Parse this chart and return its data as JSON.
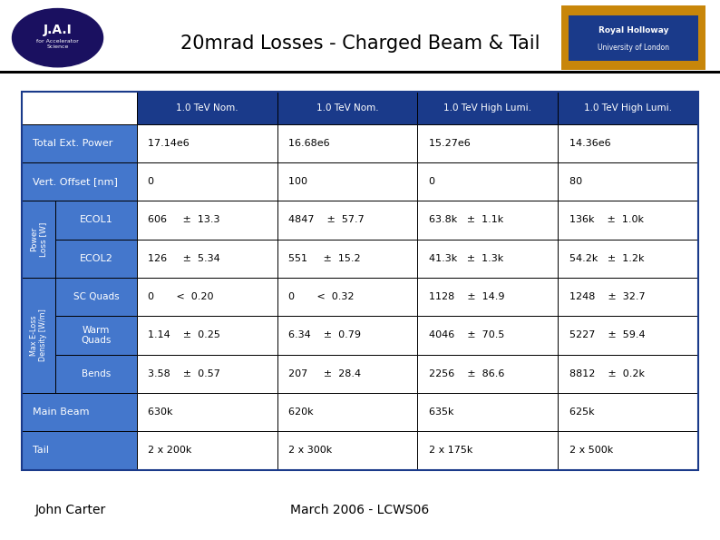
{
  "title": "20mrad Losses - Charged Beam & Tail",
  "footer_left": "John Carter",
  "footer_right": "March 2006 - LCWS06",
  "col_headers": [
    "1.0 TeV Nom.",
    "1.0 TeV Nom.",
    "1.0 TeV High Lumi.",
    "1.0 TeV High Lumi."
  ],
  "header_bg": "#1a3a8a",
  "blue_row": "#4477cc",
  "white_row": "#ffffff",
  "white_text": "#ffffff",
  "black_text": "#000000",
  "border_col": "#000000",
  "rows": [
    {
      "label": "Total Ext. Power",
      "values": [
        "17.14e6",
        "16.68e6",
        "15.27e6",
        "14.36e6"
      ],
      "span": true
    },
    {
      "label": "Vert. Offset [nm]",
      "values": [
        "0",
        "100",
        "0",
        "80"
      ],
      "span": true
    },
    {
      "group": "Power\nLoss [W]",
      "label": "ECOL1",
      "values": [
        "606     ±  13.3",
        "4847    ±  57.7",
        "63.8k   ±  1.1k",
        "136k    ±  1.0k"
      ],
      "span": false
    },
    {
      "group": "Power\nLoss [W]",
      "label": "ECOL2",
      "values": [
        "126     ±  5.34",
        "551     ±  15.2",
        "41.3k   ±  1.3k",
        "54.2k   ±  1.2k"
      ],
      "span": false
    },
    {
      "group": "Max E-Loss\nDensity [W/m]",
      "label": "SC Quads",
      "values": [
        "0       <  0.20",
        "0       <  0.32",
        "1128    ±  14.9",
        "1248    ±  32.7"
      ],
      "span": false
    },
    {
      "group": "Max E-Loss\nDensity [W/m]",
      "label": "Warm\nQuads",
      "values": [
        "1.14    ±  0.25",
        "6.34    ±  0.79",
        "4046    ±  70.5",
        "5227    ±  59.4"
      ],
      "span": false
    },
    {
      "group": "Max E-Loss\nDensity [W/m]",
      "label": "Bends",
      "values": [
        "3.58    ±  0.57",
        "207     ±  28.4",
        "2256    ±  86.6",
        "8812    ±  0.2k"
      ],
      "span": false
    },
    {
      "label": "Main Beam",
      "values": [
        "630k",
        "620k",
        "635k",
        "625k"
      ],
      "span": true
    },
    {
      "label": "Tail",
      "values": [
        "2 x 200k",
        "2 x 300k",
        "2 x 175k",
        "2 x 500k"
      ],
      "span": true
    }
  ]
}
